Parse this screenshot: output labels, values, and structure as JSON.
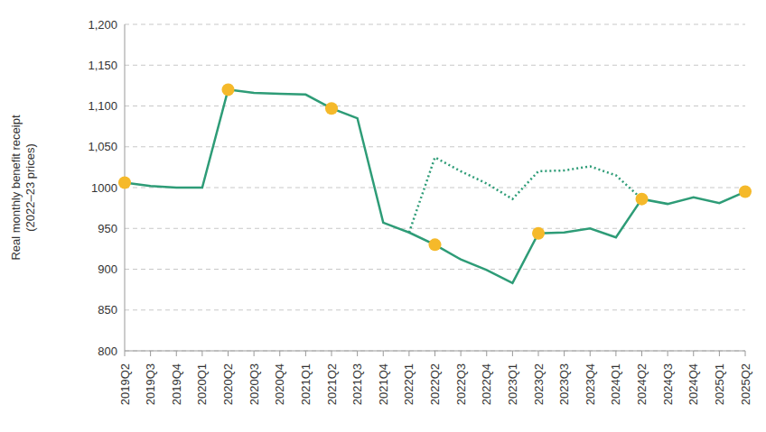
{
  "chart_data": {
    "type": "line",
    "y_label": "Real monthly benefit receipt (2022–23 prices)",
    "categories": [
      "2019Q2",
      "2019Q3",
      "2019Q4",
      "2020Q1",
      "2020Q2",
      "2020Q3",
      "2020Q4",
      "2021Q1",
      "2021Q2",
      "2021Q3",
      "2021Q4",
      "2022Q1",
      "2022Q2",
      "2022Q3",
      "2022Q4",
      "2023Q1",
      "2023Q2",
      "2023Q3",
      "2023Q4",
      "2024Q1",
      "2024Q2",
      "2024Q3",
      "2024Q4",
      "2025Q1",
      "2025Q2"
    ],
    "series": [
      {
        "color": "#2e9c77",
        "line_style": "solid",
        "values": [
          1006,
          1002,
          1000,
          1000,
          1120,
          1116,
          1115,
          1114,
          1097,
          1085,
          957,
          945,
          930,
          912,
          899,
          883,
          944,
          945,
          950,
          939,
          986,
          980,
          988,
          981,
          995
        ]
      },
      {
        "color": "#2e9c77",
        "line_style": "dotted",
        "values": [
          null,
          null,
          null,
          null,
          null,
          null,
          null,
          null,
          null,
          null,
          null,
          945,
          1037,
          1020,
          1005,
          986,
          1020,
          1021,
          1026,
          1015,
          986,
          null,
          null,
          null,
          null
        ]
      },
      {
        "type": "scatter",
        "marker": "circle",
        "color": "#f5b92a",
        "values": [
          1006,
          null,
          null,
          null,
          1120,
          null,
          null,
          null,
          1097,
          null,
          null,
          null,
          930,
          null,
          null,
          null,
          944,
          null,
          null,
          null,
          986,
          null,
          null,
          null,
          995
        ]
      }
    ],
    "ylim": [
      800,
      1200
    ],
    "yticks": [
      800,
      850,
      900,
      950,
      1000,
      {
        "value": 1050,
        "label": "1,050"
      },
      {
        "value": 1100,
        "label": "1,100"
      },
      {
        "value": 1150,
        "label": "1,150"
      },
      {
        "value": 1200,
        "label": "1,200"
      }
    ],
    "grid": true
  }
}
